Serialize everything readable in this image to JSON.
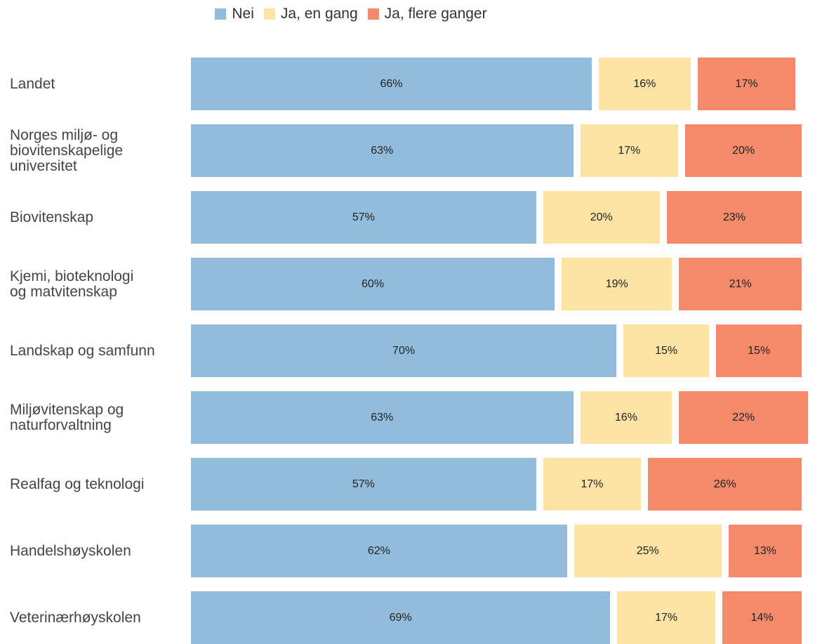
{
  "chart_data": {
    "type": "stacked-barh",
    "categories": [
      "Landet",
      "Norges miljø- og\nbiovitenskapelige\nuniversitet",
      "Biovitenskap",
      "Kjemi, bioteknologi\nog matvitenskap",
      "Landskap og samfunn",
      "Miljøvitenskap og\nnaturforvaltning",
      "Realfag og teknologi",
      "Handelshøyskolen",
      "Veterinærhøyskolen"
    ],
    "series": [
      {
        "name": "Nei",
        "color": "#91bcdb",
        "values": [
          66,
          63,
          57,
          60,
          70,
          63,
          57,
          62,
          69
        ],
        "value_labels": [
          "66%",
          "63%",
          "57%",
          "60%",
          "70%",
          "63%",
          "57%",
          "62%",
          "69%"
        ]
      },
      {
        "name": "Ja, en gang",
        "color": "#fde4a5",
        "values": [
          16,
          17,
          20,
          19,
          15,
          16,
          17,
          25,
          17
        ],
        "value_labels": [
          "16%",
          "17%",
          "20%",
          "19%",
          "15%",
          "16%",
          "17%",
          "25%",
          "17%"
        ]
      },
      {
        "name": "Ja, flere ganger",
        "color": "#f58b6a",
        "values": [
          17,
          20,
          23,
          21,
          15,
          22,
          26,
          13,
          14
        ],
        "value_labels": [
          "17%",
          "20%",
          "23%",
          "21%",
          "15%",
          "22%",
          "26%",
          "13%",
          "14%"
        ]
      }
    ],
    "xlim": [
      0,
      101
    ],
    "legend": "top"
  }
}
